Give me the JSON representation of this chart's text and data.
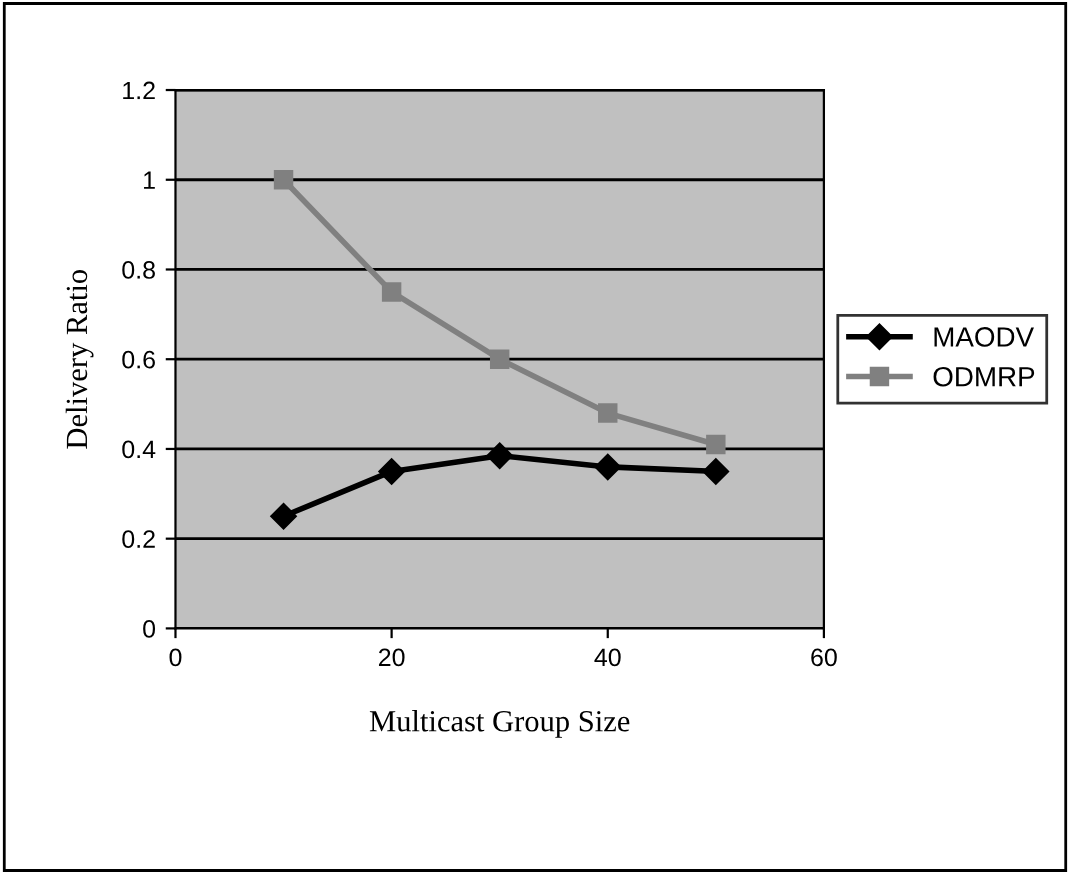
{
  "chart_data": {
    "type": "line",
    "xlabel": "Multicast Group Size",
    "ylabel": "Delivery Ratio",
    "x": [
      10,
      20,
      30,
      40,
      50
    ],
    "series": [
      {
        "name": "MAODV",
        "color": "#000000",
        "marker": "diamond",
        "values": [
          0.25,
          0.35,
          0.385,
          0.36,
          0.35
        ]
      },
      {
        "name": "ODMRP",
        "color": "#808080",
        "marker": "square",
        "values": [
          1.0,
          0.75,
          0.6,
          0.48,
          0.41
        ]
      }
    ],
    "xlim": [
      0,
      60
    ],
    "xticks": [
      0,
      20,
      40,
      60
    ],
    "ylim": [
      0,
      1.2
    ],
    "yticks": [
      0,
      0.2,
      0.4,
      0.6,
      0.8,
      1,
      1.2
    ],
    "grid": "y",
    "legend": "right",
    "line_style": "solid"
  }
}
